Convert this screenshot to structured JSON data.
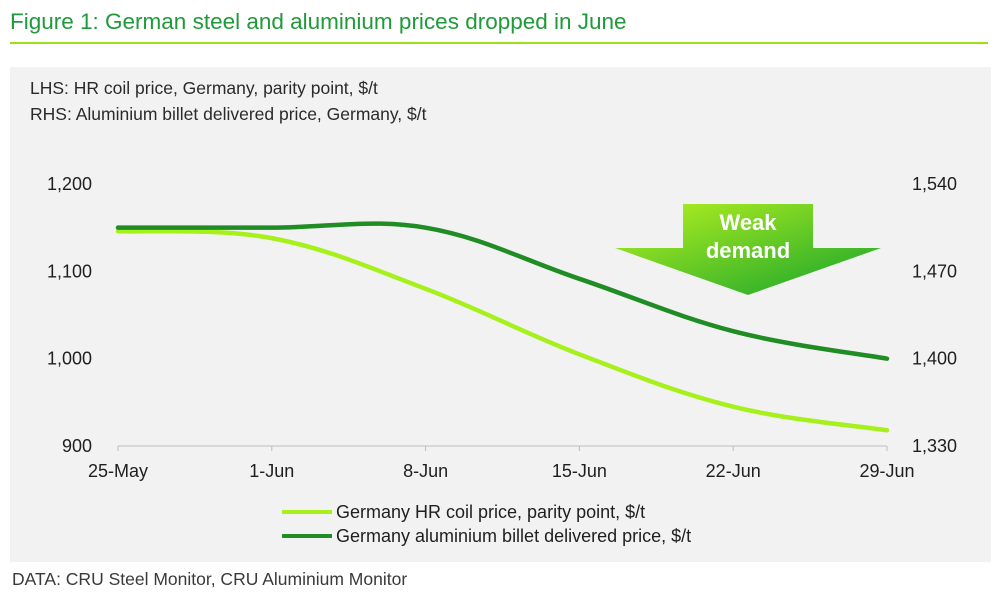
{
  "header": {
    "title": "Figure 1: German steel and aluminium prices dropped in June"
  },
  "notes": {
    "lhs": "LHS: HR coil price, Germany, parity point, $/t",
    "rhs": "RHS: Aluminium billet delivered price, Germany, $/t"
  },
  "source": "DATA: CRU Steel Monitor, CRU Aluminium Monitor",
  "colors": {
    "hr_coil": "#a6f01c",
    "aluminium": "#1f8c24",
    "title": "#1f9a3a",
    "arrow_light": "#a6f01c",
    "arrow_dark": "#12a22c"
  },
  "chart_data": {
    "type": "line",
    "x": [
      "25-May",
      "1-Jun",
      "8-Jun",
      "15-Jun",
      "22-Jun",
      "29-Jun"
    ],
    "ylim_left": [
      900,
      1200
    ],
    "yticks_left": [
      "900",
      "1,000",
      "1,100",
      "1,200"
    ],
    "ylim_right": [
      1330,
      1540
    ],
    "yticks_right": [
      "1,330",
      "1,400",
      "1,470",
      "1,540"
    ],
    "grid": false,
    "legend_position": "bottom",
    "series": [
      {
        "name": "Germany HR coil price, parity point, $/t",
        "axis": "left",
        "color": "#a6f01c",
        "values": [
          1146,
          1138,
          1080,
          1005,
          945,
          918
        ]
      },
      {
        "name": "Germany aluminium billet delivered price, $/t",
        "axis": "right",
        "color": "#1f8c24",
        "values": [
          1505,
          1505,
          1505,
          1464,
          1422,
          1400
        ]
      }
    ],
    "annotations": [
      {
        "text_line1": "Weak",
        "text_line2": "demand",
        "shape": "down-arrow"
      }
    ]
  }
}
